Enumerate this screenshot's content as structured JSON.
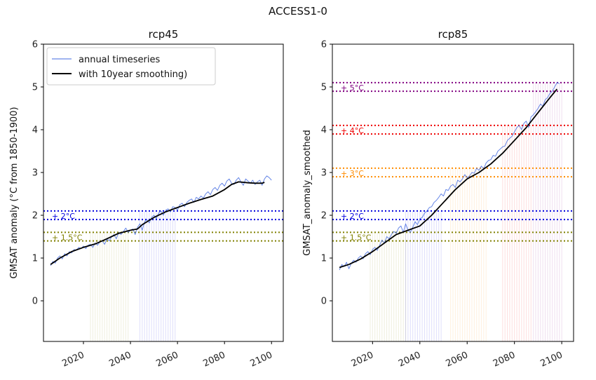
{
  "figure_title": "ACCESS1-0",
  "chart_data": [
    {
      "type": "line",
      "title": "rcp45",
      "ylabel": "GMSAT anomaly (°C from 1850-1900)",
      "xlim": [
        2003,
        2105
      ],
      "ylim": [
        -0.95,
        6
      ],
      "xticks": [
        2020,
        2040,
        2060,
        2080,
        2100
      ],
      "yticks": [
        0,
        1,
        2,
        3,
        4,
        5,
        6
      ],
      "legend": {
        "position": "top-left",
        "entries": [
          {
            "label": "annual timeseries",
            "color": "#4169e1"
          },
          {
            "label": "with 10year smoothing)",
            "color": "#000000"
          }
        ]
      },
      "threshold_bands": [
        {
          "label": "+ 1.5°C",
          "lower": 1.4,
          "upper": 1.6,
          "color": "#808000",
          "window": [
            2023,
            2039
          ]
        },
        {
          "label": "+ 2°C",
          "lower": 1.9,
          "upper": 2.1,
          "color": "#0000dd",
          "window": [
            2044,
            2059
          ]
        }
      ],
      "series": [
        {
          "name": "annual timeseries",
          "color": "#4169e1",
          "x": [
            2006,
            2007,
            2008,
            2009,
            2010,
            2011,
            2012,
            2013,
            2014,
            2015,
            2016,
            2017,
            2018,
            2019,
            2020,
            2021,
            2022,
            2023,
            2024,
            2025,
            2026,
            2027,
            2028,
            2029,
            2030,
            2031,
            2032,
            2033,
            2034,
            2035,
            2036,
            2037,
            2038,
            2039,
            2040,
            2041,
            2042,
            2043,
            2044,
            2045,
            2046,
            2047,
            2048,
            2049,
            2050,
            2051,
            2052,
            2053,
            2054,
            2055,
            2056,
            2057,
            2058,
            2059,
            2060,
            2061,
            2062,
            2063,
            2064,
            2065,
            2066,
            2067,
            2068,
            2069,
            2070,
            2071,
            2072,
            2073,
            2074,
            2075,
            2076,
            2077,
            2078,
            2079,
            2080,
            2081,
            2082,
            2083,
            2084,
            2085,
            2086,
            2087,
            2088,
            2089,
            2090,
            2091,
            2092,
            2093,
            2094,
            2095,
            2096,
            2097,
            2098,
            2099,
            2100
          ],
          "y": [
            0.82,
            0.92,
            0.88,
            1.0,
            1.05,
            0.98,
            1.1,
            1.05,
            1.15,
            1.12,
            1.2,
            1.18,
            1.25,
            1.22,
            1.28,
            1.22,
            1.3,
            1.32,
            1.25,
            1.35,
            1.3,
            1.38,
            1.4,
            1.32,
            1.45,
            1.4,
            1.5,
            1.55,
            1.45,
            1.6,
            1.55,
            1.62,
            1.7,
            1.6,
            1.65,
            1.68,
            1.55,
            1.72,
            1.8,
            1.65,
            1.85,
            1.9,
            1.82,
            1.95,
            2.0,
            1.92,
            2.05,
            2.1,
            2.0,
            2.12,
            2.15,
            2.08,
            2.2,
            2.18,
            2.12,
            2.25,
            2.28,
            2.2,
            2.3,
            2.35,
            2.38,
            2.3,
            2.42,
            2.38,
            2.45,
            2.4,
            2.5,
            2.55,
            2.48,
            2.6,
            2.65,
            2.58,
            2.7,
            2.75,
            2.68,
            2.8,
            2.85,
            2.75,
            2.72,
            2.82,
            2.88,
            2.78,
            2.7,
            2.85,
            2.8,
            2.75,
            2.82,
            2.72,
            2.78,
            2.82,
            2.7,
            2.85,
            2.92,
            2.88,
            2.82
          ]
        },
        {
          "name": "with 10year smoothing)",
          "color": "#000000",
          "x": [
            2006,
            2010,
            2015,
            2020,
            2025,
            2030,
            2035,
            2040,
            2043,
            2045,
            2050,
            2055,
            2060,
            2065,
            2070,
            2075,
            2080,
            2083,
            2086,
            2090,
            2093,
            2096,
            2097
          ],
          "y": [
            0.85,
            1.0,
            1.15,
            1.25,
            1.33,
            1.45,
            1.58,
            1.65,
            1.68,
            1.78,
            1.95,
            2.08,
            2.18,
            2.28,
            2.37,
            2.45,
            2.6,
            2.72,
            2.78,
            2.76,
            2.75,
            2.75,
            2.77
          ]
        }
      ]
    },
    {
      "type": "line",
      "title": "rcp85",
      "ylabel": "GMSAT_anomaly_smoothed",
      "xlim": [
        2003,
        2105
      ],
      "ylim": [
        -0.95,
        6
      ],
      "xticks": [
        2020,
        2040,
        2060,
        2080,
        2100
      ],
      "yticks": [
        0,
        1,
        2,
        3,
        4,
        5,
        6
      ],
      "threshold_bands": [
        {
          "label": "+ 1.5°C",
          "lower": 1.4,
          "upper": 1.6,
          "color": "#808000",
          "window": [
            2019,
            2034
          ]
        },
        {
          "label": "+ 2°C",
          "lower": 1.9,
          "upper": 2.1,
          "color": "#0000dd",
          "window": [
            2034,
            2049
          ]
        },
        {
          "label": "+ 3°C",
          "lower": 2.9,
          "upper": 3.1,
          "color": "#ff8c00",
          "window": [
            2053,
            2068
          ]
        },
        {
          "label": "+ 4°C",
          "lower": 3.9,
          "upper": 4.1,
          "color": "#ee0000",
          "window": [
            2075,
            2087
          ]
        },
        {
          "label": "+ 5°C",
          "lower": 4.9,
          "upper": 5.1,
          "color": "#800080",
          "window": [
            2088,
            2100
          ]
        }
      ],
      "series": [
        {
          "name": "annual timeseries",
          "color": "#4169e1",
          "x": [
            2006,
            2007,
            2008,
            2009,
            2010,
            2011,
            2012,
            2013,
            2014,
            2015,
            2016,
            2017,
            2018,
            2019,
            2020,
            2021,
            2022,
            2023,
            2024,
            2025,
            2026,
            2027,
            2028,
            2029,
            2030,
            2031,
            2032,
            2033,
            2034,
            2035,
            2036,
            2037,
            2038,
            2039,
            2040,
            2041,
            2042,
            2043,
            2044,
            2045,
            2046,
            2047,
            2048,
            2049,
            2050,
            2051,
            2052,
            2053,
            2054,
            2055,
            2056,
            2057,
            2058,
            2059,
            2060,
            2061,
            2062,
            2063,
            2064,
            2065,
            2066,
            2067,
            2068,
            2069,
            2070,
            2071,
            2072,
            2073,
            2074,
            2075,
            2076,
            2077,
            2078,
            2079,
            2080,
            2081,
            2082,
            2083,
            2084,
            2085,
            2086,
            2087,
            2088,
            2089,
            2090,
            2091,
            2092,
            2093,
            2094,
            2095,
            2096,
            2097,
            2098,
            2099
          ],
          "y": [
            0.72,
            0.85,
            0.8,
            0.9,
            0.75,
            0.88,
            0.95,
            0.9,
            1.0,
            1.05,
            0.98,
            1.1,
            1.15,
            1.08,
            1.2,
            1.25,
            1.18,
            1.3,
            1.42,
            1.35,
            1.5,
            1.45,
            1.55,
            1.62,
            1.58,
            1.7,
            1.75,
            1.6,
            1.8,
            1.65,
            1.6,
            1.72,
            1.85,
            1.78,
            1.92,
            1.95,
            2.05,
            2.1,
            2.18,
            2.2,
            2.3,
            2.35,
            2.42,
            2.5,
            2.45,
            2.6,
            2.58,
            2.68,
            2.72,
            2.65,
            2.82,
            2.78,
            2.85,
            2.95,
            2.88,
            2.92,
            3.0,
            2.98,
            3.1,
            3.05,
            3.15,
            3.08,
            3.22,
            3.28,
            3.3,
            3.4,
            3.38,
            3.5,
            3.55,
            3.6,
            3.62,
            3.75,
            3.8,
            3.85,
            3.95,
            4.05,
            4.1,
            4.0,
            4.15,
            4.2,
            4.05,
            4.3,
            4.35,
            4.42,
            4.5,
            4.6,
            4.55,
            4.7,
            4.75,
            4.85,
            4.9,
            5.0,
            5.1,
            5.08
          ]
        },
        {
          "name": "with 10year smoothing)",
          "color": "#000000",
          "x": [
            2006,
            2010,
            2015,
            2020,
            2025,
            2030,
            2035,
            2040,
            2045,
            2050,
            2055,
            2060,
            2065,
            2070,
            2075,
            2080,
            2085,
            2090,
            2095,
            2098
          ],
          "y": [
            0.78,
            0.85,
            0.98,
            1.15,
            1.35,
            1.55,
            1.65,
            1.75,
            2.0,
            2.3,
            2.6,
            2.85,
            3.0,
            3.2,
            3.45,
            3.75,
            4.05,
            4.4,
            4.75,
            4.95
          ]
        }
      ]
    }
  ]
}
